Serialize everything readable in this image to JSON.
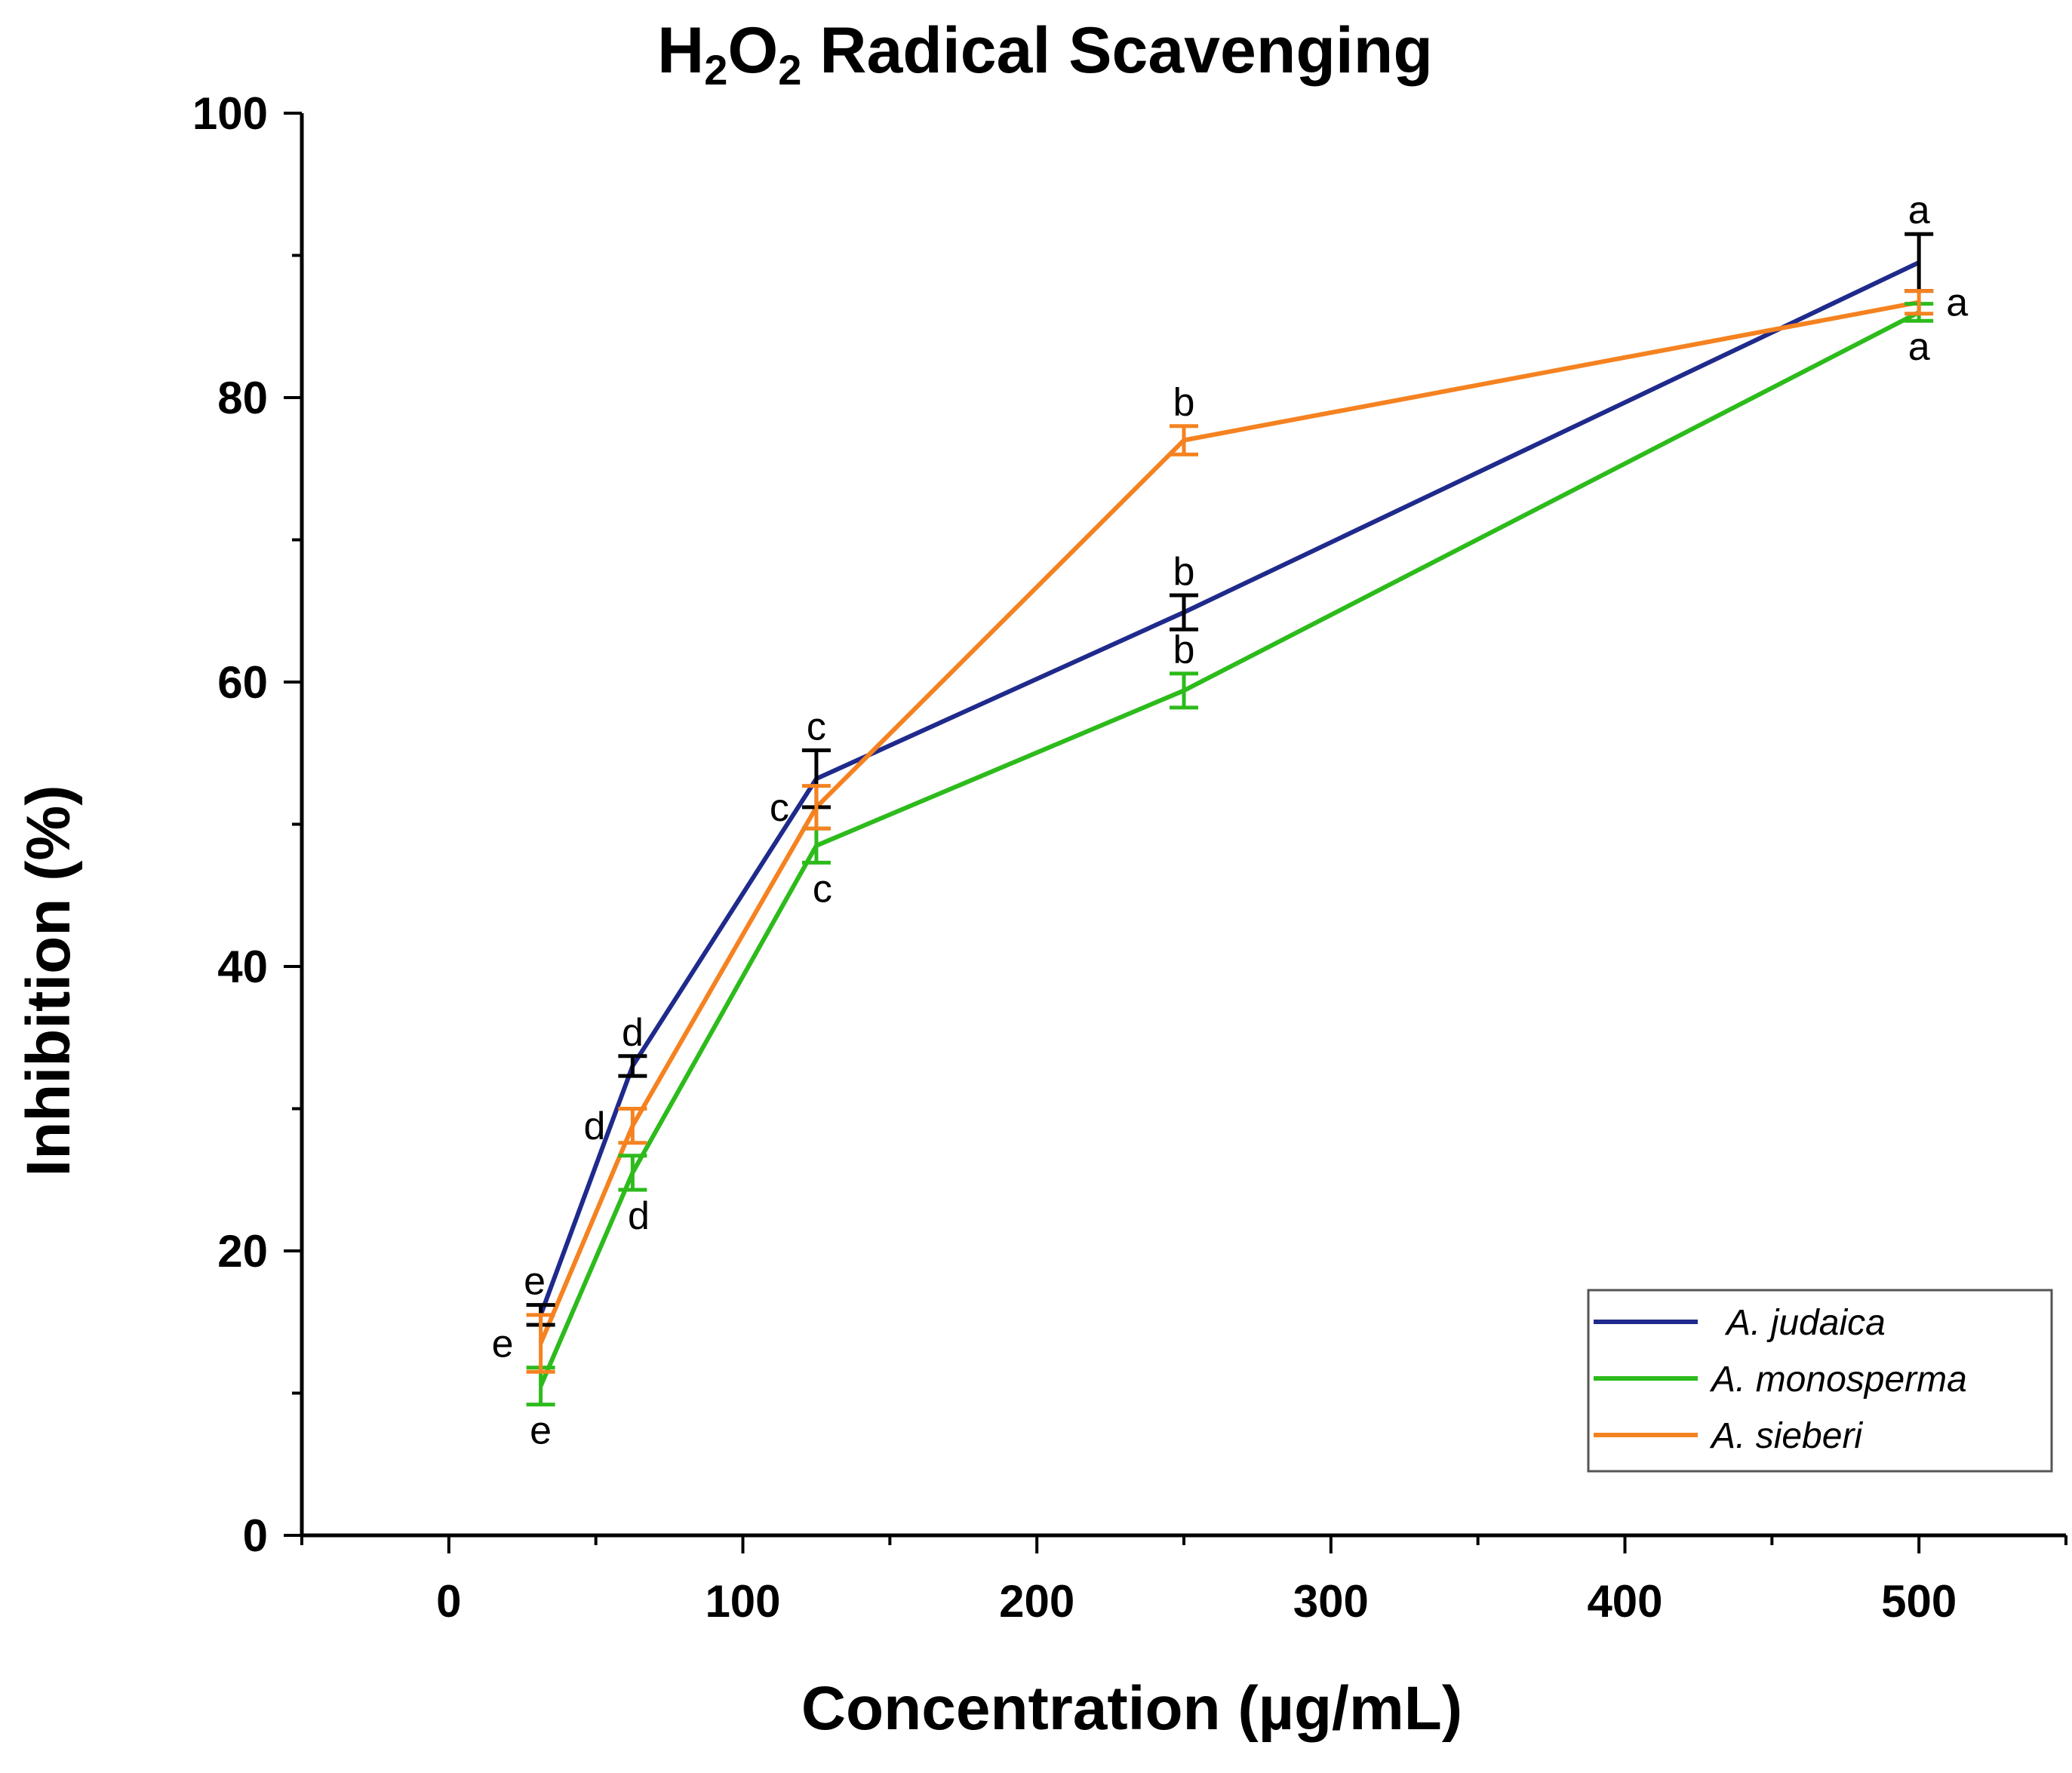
{
  "chart_data": {
    "type": "line",
    "title": "Radical Scavenging",
    "title_formula": {
      "parts": [
        "H",
        "2",
        "O",
        "2"
      ]
    },
    "xlabel": "Concentration (µg/mL)",
    "ylabel": "Inhibition (%)",
    "xlim": [
      -50,
      550
    ],
    "ylim": [
      0,
      100
    ],
    "x_major_ticks": [
      0,
      100,
      200,
      300,
      400,
      500
    ],
    "x_minor_ticks": [
      -50,
      50,
      150,
      250,
      350,
      450,
      550
    ],
    "y_major_ticks": [
      0,
      20,
      40,
      60,
      80,
      100
    ],
    "y_minor_ticks": [
      10,
      30,
      50,
      70,
      90
    ],
    "x": [
      31.25,
      62.5,
      125,
      250,
      500
    ],
    "series": [
      {
        "name": "A. judaica",
        "color": "#1f2a8c",
        "error_color": "#000000",
        "values": [
          15.5,
          33.0,
          53.2,
          64.9,
          89.5
        ],
        "errors": [
          0.7,
          0.7,
          2.0,
          1.2,
          2.0
        ],
        "letters": [
          "e",
          "d",
          "c",
          "b",
          "a"
        ],
        "letter_offsets_x": [
          -1,
          0,
          0,
          0,
          0
        ],
        "letter_positions": [
          "above",
          "above",
          "above",
          "above",
          "above"
        ]
      },
      {
        "name": "A. monosperma",
        "color": "#2dbb1c",
        "error_color": "#2dbb1c",
        "values": [
          10.5,
          25.5,
          48.5,
          59.4,
          86.0
        ],
        "errors": [
          1.3,
          1.2,
          1.2,
          1.2,
          0.6
        ],
        "letters": [
          "e",
          "d",
          "c",
          "b",
          "a"
        ],
        "letter_offsets_x": [
          0,
          1,
          1,
          0,
          0
        ],
        "letter_positions": [
          "below",
          "below",
          "below",
          "above",
          "below"
        ]
      },
      {
        "name": "A. sieberi",
        "color": "#f58220",
        "error_color": "#f58220",
        "values": [
          13.5,
          28.8,
          51.2,
          77.0,
          86.7
        ],
        "errors": [
          2.0,
          1.2,
          1.5,
          1.0,
          0.8
        ],
        "letters": [
          "e",
          "d",
          "c",
          "b",
          "a"
        ],
        "letter_offsets_x": [
          -1,
          -1,
          -1,
          0,
          1
        ],
        "letter_positions": [
          "left",
          "left",
          "left",
          "above",
          "right"
        ]
      }
    ],
    "legend": {
      "position": "bottom-right",
      "entries": [
        "A. judaica",
        "A. monosperma",
        "A. sieberi"
      ]
    }
  }
}
